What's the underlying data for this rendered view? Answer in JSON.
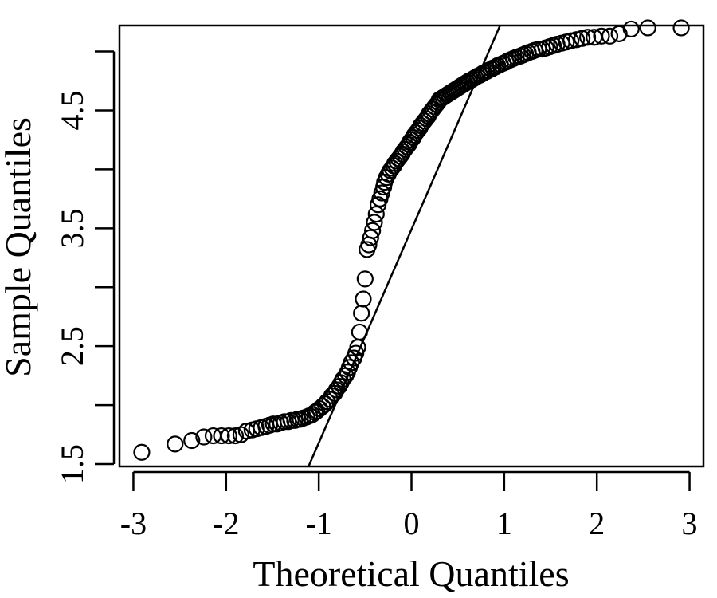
{
  "chart_data": {
    "type": "scatter",
    "title": "",
    "xlabel": "Theoretical Quantiles",
    "ylabel": "Sample Quantiles",
    "xlim": [
      -3.15,
      3.15
    ],
    "ylim": [
      1.48,
      5.22
    ],
    "xticks": [
      -3,
      -2,
      -1,
      0,
      1,
      2,
      3
    ],
    "xtick_labels": [
      "-3",
      "-2",
      "-1",
      "0",
      "1",
      "2",
      "3"
    ],
    "yticks": [
      1.5,
      2.0,
      2.5,
      3.0,
      3.5,
      4.0,
      4.5,
      5.0
    ],
    "ytick_labels": [
      "1.5",
      "",
      "2.5",
      "",
      "3.5",
      "",
      "4.5",
      ""
    ],
    "grid": false,
    "legend": "none",
    "marker": "open-circle",
    "reference_line": {
      "intercept": 3.49,
      "slope": 1.81
    },
    "series": [
      {
        "x": [
          -2.91,
          -2.55,
          -2.37,
          -2.24,
          -2.14,
          -2.05,
          -1.97,
          -1.9,
          -1.84,
          -1.78,
          -1.72,
          -1.67,
          -1.62,
          -1.57,
          -1.53,
          -1.49,
          -1.45,
          -1.41,
          -1.37,
          -1.33,
          -1.3,
          -1.26,
          -1.23,
          -1.2,
          -1.17,
          -1.13,
          -1.1,
          -1.07,
          -1.04,
          -1.02,
          -0.99,
          -0.96,
          -0.93,
          -0.91,
          -0.88,
          -0.86,
          -0.83,
          -0.81,
          -0.78,
          -0.76,
          -0.74,
          -0.71,
          -0.69,
          -0.67,
          -0.65,
          -0.62,
          -0.6,
          -0.58,
          -0.56,
          -0.54,
          -0.52,
          -0.5,
          -0.48,
          -0.46,
          -0.44,
          -0.42,
          -0.4,
          -0.38,
          -0.36,
          -0.34,
          -0.32,
          -0.3,
          -0.29,
          -0.27,
          -0.25,
          -0.23,
          -0.21,
          -0.19,
          -0.18,
          -0.16,
          -0.14,
          -0.12,
          -0.1,
          -0.09,
          -0.07,
          -0.05,
          -0.03,
          -0.02,
          0.0,
          0.02,
          0.03,
          0.05,
          0.07,
          0.09,
          0.1,
          0.12,
          0.14,
          0.16,
          0.18,
          0.19,
          0.21,
          0.23,
          0.25,
          0.27,
          0.29,
          0.3,
          0.32,
          0.34,
          0.36,
          0.38,
          0.4,
          0.42,
          0.44,
          0.46,
          0.48,
          0.5,
          0.52,
          0.54,
          0.56,
          0.58,
          0.6,
          0.62,
          0.65,
          0.67,
          0.69,
          0.71,
          0.74,
          0.76,
          0.78,
          0.81,
          0.83,
          0.86,
          0.88,
          0.91,
          0.93,
          0.96,
          0.99,
          1.02,
          1.04,
          1.07,
          1.1,
          1.13,
          1.17,
          1.2,
          1.23,
          1.26,
          1.3,
          1.33,
          1.37,
          1.41,
          1.45,
          1.49,
          1.53,
          1.57,
          1.62,
          1.67,
          1.72,
          1.78,
          1.84,
          1.9,
          1.97,
          2.05,
          2.14,
          2.24,
          2.37,
          2.55,
          2.91
        ],
        "y": [
          1.6,
          1.67,
          1.7,
          1.73,
          1.74,
          1.74,
          1.74,
          1.74,
          1.75,
          1.78,
          1.79,
          1.8,
          1.81,
          1.82,
          1.83,
          1.84,
          1.84,
          1.85,
          1.86,
          1.86,
          1.87,
          1.87,
          1.88,
          1.88,
          1.89,
          1.9,
          1.91,
          1.92,
          1.94,
          1.95,
          1.97,
          1.99,
          2.01,
          2.03,
          2.05,
          2.08,
          2.1,
          2.13,
          2.16,
          2.19,
          2.22,
          2.25,
          2.28,
          2.32,
          2.36,
          2.4,
          2.44,
          2.49,
          2.62,
          2.78,
          2.9,
          3.07,
          3.32,
          3.36,
          3.42,
          3.48,
          3.55,
          3.62,
          3.7,
          3.75,
          3.8,
          3.85,
          3.89,
          3.93,
          3.96,
          3.99,
          4.01,
          4.03,
          4.05,
          4.07,
          4.09,
          4.11,
          4.13,
          4.15,
          4.17,
          4.19,
          4.21,
          4.23,
          4.25,
          4.27,
          4.29,
          4.31,
          4.33,
          4.35,
          4.37,
          4.39,
          4.41,
          4.43,
          4.45,
          4.47,
          4.49,
          4.51,
          4.53,
          4.55,
          4.57,
          4.59,
          4.6,
          4.61,
          4.62,
          4.63,
          4.64,
          4.65,
          4.66,
          4.67,
          4.68,
          4.69,
          4.7,
          4.71,
          4.72,
          4.73,
          4.74,
          4.75,
          4.76,
          4.77,
          4.78,
          4.79,
          4.8,
          4.81,
          4.82,
          4.83,
          4.84,
          4.85,
          4.86,
          4.87,
          4.88,
          4.89,
          4.9,
          4.91,
          4.92,
          4.93,
          4.94,
          4.95,
          4.96,
          4.97,
          4.98,
          4.99,
          5.0,
          5.01,
          5.02,
          5.02,
          5.03,
          5.04,
          5.05,
          5.06,
          5.07,
          5.08,
          5.09,
          5.1,
          5.11,
          5.12,
          5.12,
          5.13,
          5.13,
          5.15,
          5.19,
          5.2,
          5.2
        ]
      }
    ]
  }
}
